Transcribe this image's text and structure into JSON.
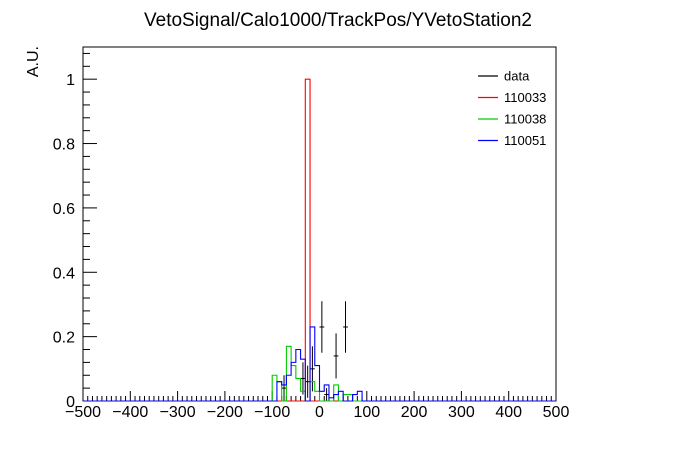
{
  "chart_data": {
    "type": "histogram",
    "title": "VetoSignal/Calo1000/TrackPos/YVetoStation2",
    "xlabel": "",
    "ylabel": "A.U.",
    "xlim": [
      -500,
      500
    ],
    "ylim": [
      0,
      1.1
    ],
    "bin_width": 10,
    "x_ticks": [
      -500,
      -400,
      -300,
      -200,
      -100,
      0,
      100,
      200,
      300,
      400,
      500
    ],
    "x_tick_labels": [
      "−500",
      "−400",
      "−300",
      "−200",
      "−100",
      "0",
      "100",
      "200",
      "300",
      "400",
      "500"
    ],
    "y_ticks": [
      0,
      0.2,
      0.4,
      0.6,
      0.8,
      1
    ],
    "y_tick_labels": [
      "0",
      "0.2",
      "0.4",
      "0.6",
      "0.8",
      "1"
    ],
    "legend_position": "top-right",
    "series": [
      {
        "name": "data",
        "color": "#000000",
        "style": "points",
        "points": [
          {
            "x": -75,
            "y": 0.04,
            "err": 0.04
          },
          {
            "x": -35,
            "y": 0.07,
            "err": 0.05
          },
          {
            "x": -25,
            "y": 0.06,
            "err": 0.05
          },
          {
            "x": -15,
            "y": 0.1,
            "err": 0.07
          },
          {
            "x": 5,
            "y": 0.23,
            "err": 0.08
          },
          {
            "x": 15,
            "y": 0.02,
            "err": 0.02
          },
          {
            "x": 35,
            "y": 0.14,
            "err": 0.07
          },
          {
            "x": 55,
            "y": 0.23,
            "err": 0.08
          }
        ]
      },
      {
        "name": "110033",
        "color": "#ff0000",
        "style": "step",
        "bins": [
          {
            "x0": -30,
            "x1": -20,
            "y": 1.0
          }
        ]
      },
      {
        "name": "110038",
        "color": "#00cc00",
        "style": "step",
        "bins": [
          {
            "x0": -100,
            "x1": -90,
            "y": 0.08
          },
          {
            "x0": -90,
            "x1": -80,
            "y": 0.06
          },
          {
            "x0": -70,
            "x1": -60,
            "y": 0.17
          },
          {
            "x0": -60,
            "x1": -50,
            "y": 0.11
          },
          {
            "x0": -50,
            "x1": -40,
            "y": 0.07
          },
          {
            "x0": -40,
            "x1": -30,
            "y": 0.03
          },
          {
            "x0": -20,
            "x1": -10,
            "y": 0.06
          },
          {
            "x0": -10,
            "x1": 0,
            "y": 0.03
          },
          {
            "x0": 30,
            "x1": 40,
            "y": 0.05
          },
          {
            "x0": 50,
            "x1": 60,
            "y": 0.02
          },
          {
            "x0": 60,
            "x1": 70,
            "y": 0.02
          }
        ]
      },
      {
        "name": "110051",
        "color": "#0000ff",
        "style": "step",
        "bins": [
          {
            "x0": -90,
            "x1": -80,
            "y": 0.06
          },
          {
            "x0": -80,
            "x1": -70,
            "y": 0.05
          },
          {
            "x0": -70,
            "x1": -60,
            "y": 0.08
          },
          {
            "x0": -60,
            "x1": -50,
            "y": 0.12
          },
          {
            "x0": -50,
            "x1": -40,
            "y": 0.16
          },
          {
            "x0": -40,
            "x1": -30,
            "y": 0.13
          },
          {
            "x0": -20,
            "x1": -10,
            "y": 0.23
          },
          {
            "x0": -10,
            "x1": 0,
            "y": 0.11
          },
          {
            "x0": 0,
            "x1": 10,
            "y": 0.03
          },
          {
            "x0": 10,
            "x1": 20,
            "y": 0.05
          },
          {
            "x0": 20,
            "x1": 30,
            "y": 0.01
          },
          {
            "x0": 30,
            "x1": 40,
            "y": 0.02
          },
          {
            "x0": 40,
            "x1": 50,
            "y": 0.03
          },
          {
            "x0": 70,
            "x1": 80,
            "y": 0.02
          },
          {
            "x0": 80,
            "x1": 90,
            "y": 0.03
          }
        ]
      }
    ]
  }
}
